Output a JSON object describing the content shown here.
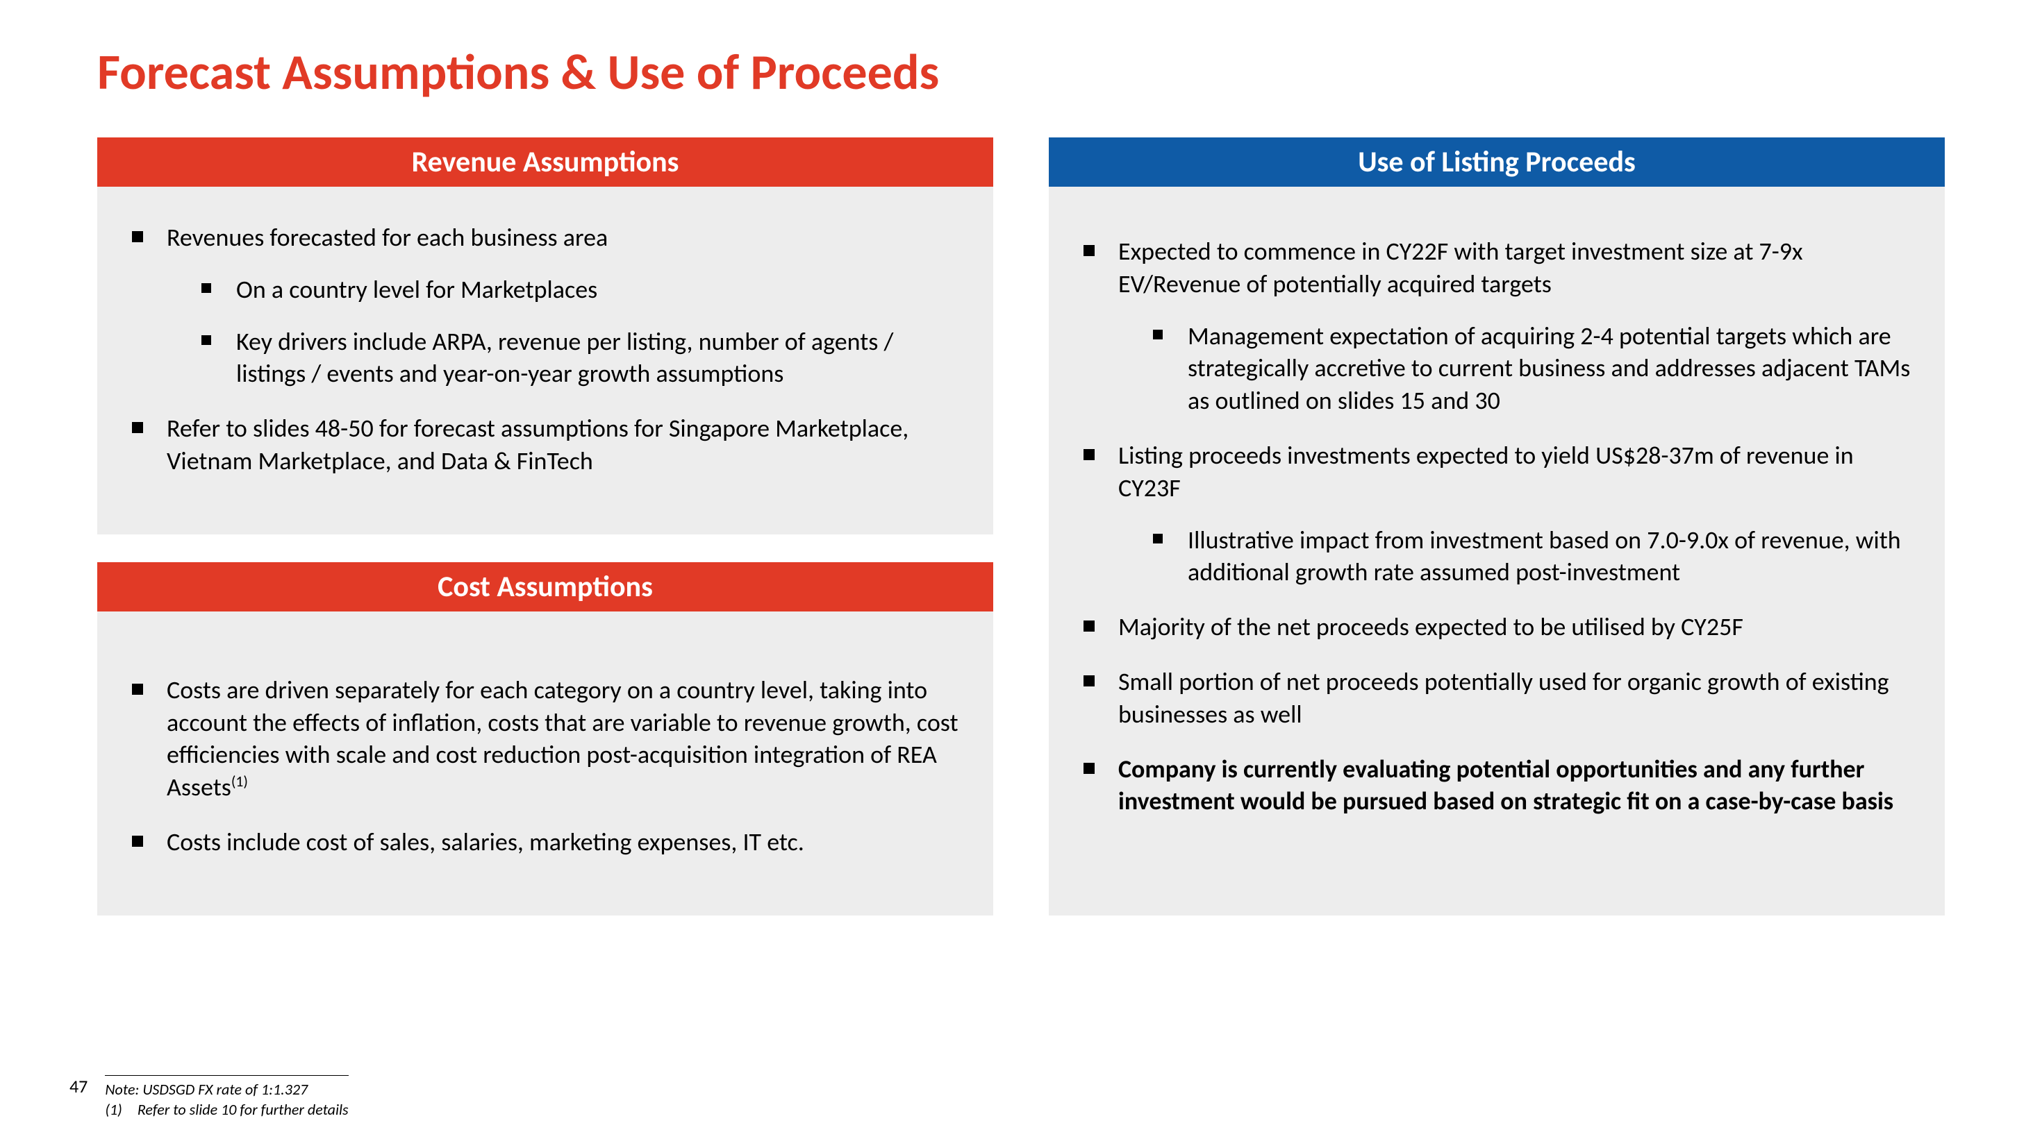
{
  "colors": {
    "title": "#e13a26",
    "header_red": "#e13a26",
    "header_blue": "#0f5ba6",
    "body_bg": "#ededed",
    "text": "#000000"
  },
  "title": "Forecast Assumptions & Use of Proceeds",
  "left": {
    "revenue": {
      "header": "Revenue Assumptions",
      "items": [
        {
          "text": "Revenues forecasted for each business area",
          "sub": [
            {
              "text": "On a country level for Marketplaces"
            },
            {
              "text": "Key drivers include ARPA, revenue per listing, number of agents / listings / events and year-on-year growth assumptions"
            }
          ]
        },
        {
          "text": "Refer to slides 48-50 for forecast assumptions for Singapore Marketplace, Vietnam Marketplace, and Data & FinTech"
        }
      ]
    },
    "cost": {
      "header": "Cost Assumptions",
      "items": [
        {
          "text_html": "Costs are driven separately for each category on a country level, taking into account the effects of inflation, costs that are variable to revenue growth, cost efficiencies with scale and cost reduction post-acquisition integration of REA Assets<sup>(1)</sup>"
        },
        {
          "text": "Costs include cost of sales, salaries, marketing expenses, IT etc."
        }
      ]
    }
  },
  "right": {
    "proceeds": {
      "header": "Use of Listing Proceeds",
      "items": [
        {
          "text": "Expected to commence in CY22F with target investment size at 7-9x EV/Revenue of potentially acquired targets",
          "sub": [
            {
              "text": "Management expectation of acquiring 2-4 potential targets which are strategically accretive to current business and addresses adjacent TAMs as outlined on slides 15 and 30"
            }
          ]
        },
        {
          "text": "Listing proceeds investments expected to yield US$28-37m of revenue in CY23F",
          "sub": [
            {
              "text": "Illustrative impact from investment based on 7.0-9.0x of revenue, with additional growth rate assumed post-investment"
            }
          ]
        },
        {
          "text": "Majority of the net proceeds expected to be utilised by CY25F"
        },
        {
          "text": "Small portion of net proceeds potentially used for organic growth of existing businesses as well"
        },
        {
          "text": "Company is currently evaluating potential opportunities and any further investment would be pursued based on strategic fit on a case-by-case basis",
          "bold": true
        }
      ]
    }
  },
  "footer": {
    "page": "47",
    "note1": "Note: USDSGD FX rate of 1:1.327",
    "note2": "(1) Refer to slide 10 for further details"
  }
}
